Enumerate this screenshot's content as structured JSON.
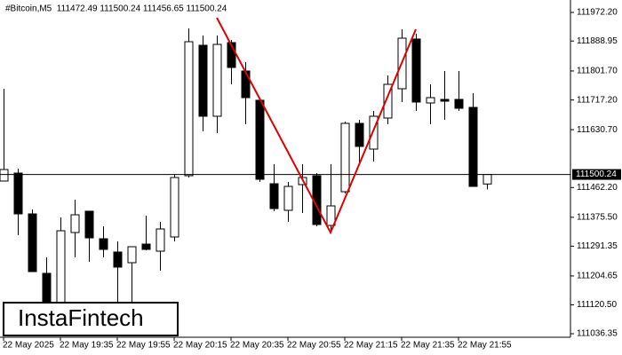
{
  "chart_data": {
    "type": "candlestick",
    "title": "#Bitcoin,M5  111472.49 111500.24 111456.65 111500.24",
    "watermark": "InstaFintech",
    "categories": [
      "22 May 2025",
      null,
      null,
      null,
      "22 May 19:35",
      null,
      null,
      null,
      "22 May 19:55",
      null,
      null,
      null,
      "22 May 20:15",
      null,
      null,
      null,
      "22 May 20:35",
      null,
      null,
      null,
      "22 May 20:55",
      null,
      null,
      null,
      "22 May 21:15",
      null,
      null,
      null,
      "22 May 21:35",
      null,
      null,
      null,
      "22 May 21:55",
      null,
      null
    ],
    "open": [
      111481.1,
      111504.3,
      111385.4,
      111212.2,
      111031.3,
      111331.1,
      111393.2,
      111313.0,
      111274.3,
      111243.2,
      111297.5,
      111276.8,
      111318.2,
      111496.6,
      111876.6,
      111669.8,
      111884.3,
      111801.6,
      111716.3,
      111473.3,
      111395.8,
      111470.7,
      111496.6,
      111351.8,
      111450.0,
      111649.1,
      111574.1,
      111664.6,
      111749.9,
      111894.7,
      111708.5,
      111718.9,
      111718.9,
      111695.6,
      111472.49
    ],
    "high": [
      111749.9,
      111517.2,
      111398.3,
      111258.7,
      111375.1,
      111426.8,
      111393.2,
      111349.2,
      111305.3,
      111289.8,
      111380.2,
      111362.1,
      111499.2,
      111925.7,
      111905.0,
      111905.0,
      111892.1,
      111827.4,
      111716.3,
      111530.2,
      111478.5,
      111530.2,
      111504.3,
      111530.2,
      111654.3,
      111659.4,
      111685.3,
      111788.7,
      111923.1,
      111910.2,
      111762.8,
      111801.6,
      111801.6,
      111737.0,
      111500.24
    ],
    "low": [
      111481.1,
      111323.4,
      111217.4,
      111031.3,
      111031.3,
      111258.7,
      111245.8,
      111258.7,
      111103.6,
      111129.5,
      111279.4,
      111220.0,
      111305.3,
      111491.4,
      111625.8,
      111620.6,
      111762.8,
      111646.5,
      111478.5,
      111393.2,
      111362.1,
      111388.0,
      111349.2,
      111331.1,
      111444.9,
      111527.6,
      111537.9,
      111646.5,
      111711.1,
      111685.3,
      111646.5,
      111659.4,
      111685.3,
      111465.5,
      111456.65
    ],
    "close": [
      111514.7,
      111385.4,
      111217.4,
      111031.3,
      111336.3,
      111382.8,
      111315.6,
      111282.0,
      111230.3,
      111289.8,
      111282.0,
      111341.5,
      111491.4,
      111886.9,
      111669.8,
      111879.1,
      111811.9,
      111724.0,
      111486.2,
      111400.9,
      111465.5,
      111491.4,
      111354.4,
      111408.7,
      111649.1,
      111581.9,
      111669.8,
      111762.8,
      111897.2,
      111711.1,
      111724.0,
      111713.7,
      111693.0,
      111465.5,
      111500.24
    ],
    "up_color": "#ffffff",
    "down_color": "#000000",
    "current_price": 111500.24,
    "pattern": {
      "color": "#e00000",
      "index": [
        15,
        23,
        29
      ],
      "values": [
        111956.7,
        111331.1,
        111923.1
      ]
    },
    "ylim": [
      111026.1,
      112008.4
    ],
    "yticks": [
      {
        "value": 111972.2,
        "label": "111972.20"
      },
      111888.95,
      {
        "value": 111801.7,
        "label": "111801.70"
      },
      {
        "value": 111717.2,
        "label": "111717.20"
      },
      {
        "value": 111630.7,
        "label": "111630.70"
      },
      {
        "value": 111462.2,
        "label": "111462.20"
      },
      {
        "value": 111375.5,
        "label": "111375.50"
      },
      111291.35,
      111204.65,
      {
        "value": 111120.5,
        "label": "111120.50"
      },
      111036.35
    ],
    "grid": false
  }
}
